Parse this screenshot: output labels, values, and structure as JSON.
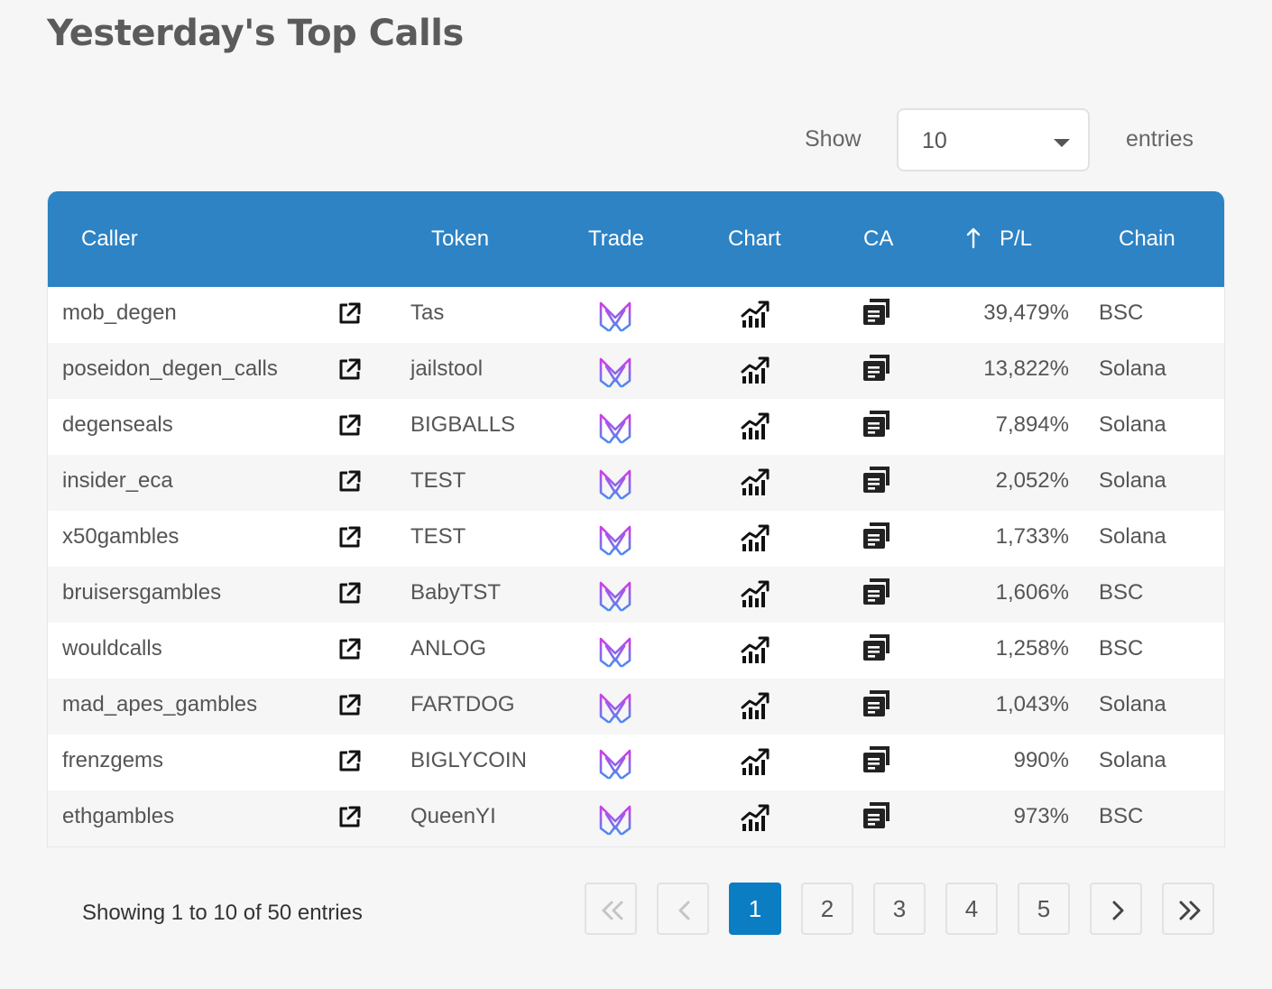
{
  "page": {
    "title": "Yesterday's Top Calls"
  },
  "length_control": {
    "show_label": "Show",
    "selected": "10",
    "entries_label": "entries"
  },
  "table": {
    "headers": {
      "caller": "Caller",
      "token": "Token",
      "trade": "Trade",
      "chart": "Chart",
      "ca": "CA",
      "pl": "P/L",
      "chain": "Chain"
    },
    "sort": {
      "column": "P/L",
      "direction": "descending"
    },
    "rows": [
      {
        "caller": "mob_degen",
        "token": "Tas",
        "pl": "39,479%",
        "chain": "BSC"
      },
      {
        "caller": "poseidon_degen_calls",
        "token": "jailstool",
        "pl": "13,822%",
        "chain": "Solana"
      },
      {
        "caller": "degenseals",
        "token": "BIGBALLS",
        "pl": "7,894%",
        "chain": "Solana"
      },
      {
        "caller": "insider_eca",
        "token": "TEST",
        "pl": "2,052%",
        "chain": "Solana"
      },
      {
        "caller": "x50gambles",
        "token": "TEST",
        "pl": "1,733%",
        "chain": "Solana"
      },
      {
        "caller": "bruisersgambles",
        "token": "BabyTST",
        "pl": "1,606%",
        "chain": "BSC"
      },
      {
        "caller": "wouldcalls",
        "token": "ANLOG",
        "pl": "1,258%",
        "chain": "BSC"
      },
      {
        "caller": "mad_apes_gambles",
        "token": "FARTDOG",
        "pl": "1,043%",
        "chain": "Solana"
      },
      {
        "caller": "frenzgems",
        "token": "BIGLYCOIN",
        "pl": "990%",
        "chain": "Solana"
      },
      {
        "caller": "ethgambles",
        "token": "QueenYI",
        "pl": "973%",
        "chain": "BSC"
      }
    ],
    "row_icons": {
      "caller_link": "external-link-icon",
      "trade": "trade-logo-icon",
      "chart": "chart-icon",
      "ca": "copy-icon"
    }
  },
  "footer": {
    "info": "Showing 1 to 10 of 50 entries",
    "pages": [
      "1",
      "2",
      "3",
      "4",
      "5"
    ],
    "current_page": "1",
    "nav_icons": [
      "first-page-icon",
      "previous-page-icon",
      "next-page-icon",
      "last-page-icon"
    ]
  },
  "colors": {
    "header_bg": "#2d83c4",
    "active_page": "#0b7dc2",
    "trade_icon_gradient": [
      "#d23be8",
      "#4a8cf0"
    ]
  }
}
